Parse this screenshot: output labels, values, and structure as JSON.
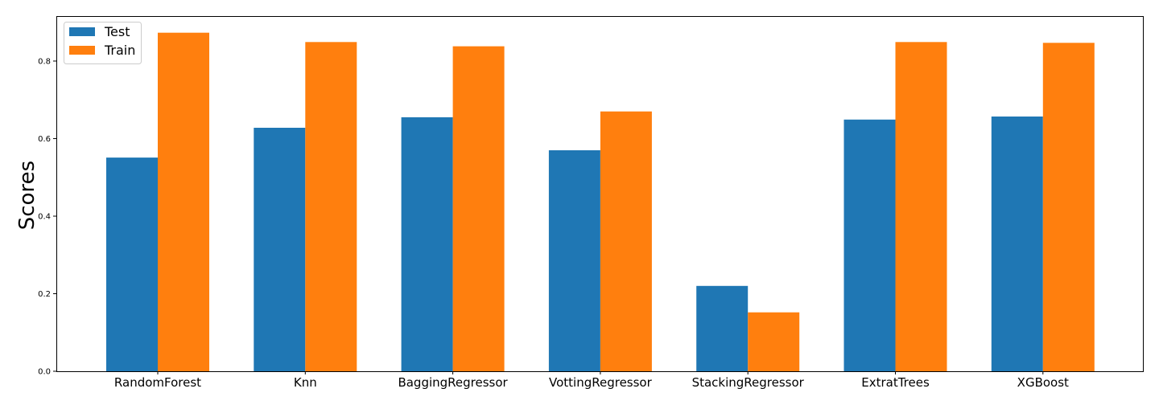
{
  "chart_data": {
    "type": "bar",
    "title": "",
    "xlabel": "",
    "ylabel": "Scores",
    "ylim": [
      0,
      0.916
    ],
    "yticks": [
      0.0,
      0.2,
      0.4,
      0.6,
      0.8
    ],
    "ytick_labels": [
      "0.0",
      "0.2",
      "0.4",
      "0.6",
      "0.8"
    ],
    "categories": [
      "RandomForest",
      "Knn",
      "BaggingRegressor",
      "VottingRegressor",
      "StackingRegressor",
      "ExtratTrees",
      "XGBoost"
    ],
    "series": [
      {
        "name": "Test",
        "color": "#1f77b4",
        "values": [
          0.551,
          0.628,
          0.655,
          0.57,
          0.22,
          0.649,
          0.657
        ]
      },
      {
        "name": "Train",
        "color": "#ff7f0e",
        "values": [
          0.873,
          0.849,
          0.838,
          0.67,
          0.152,
          0.849,
          0.847
        ]
      }
    ],
    "legend": {
      "placement": "top-left",
      "labels": [
        "Test",
        "Train"
      ]
    },
    "grid": false
  }
}
